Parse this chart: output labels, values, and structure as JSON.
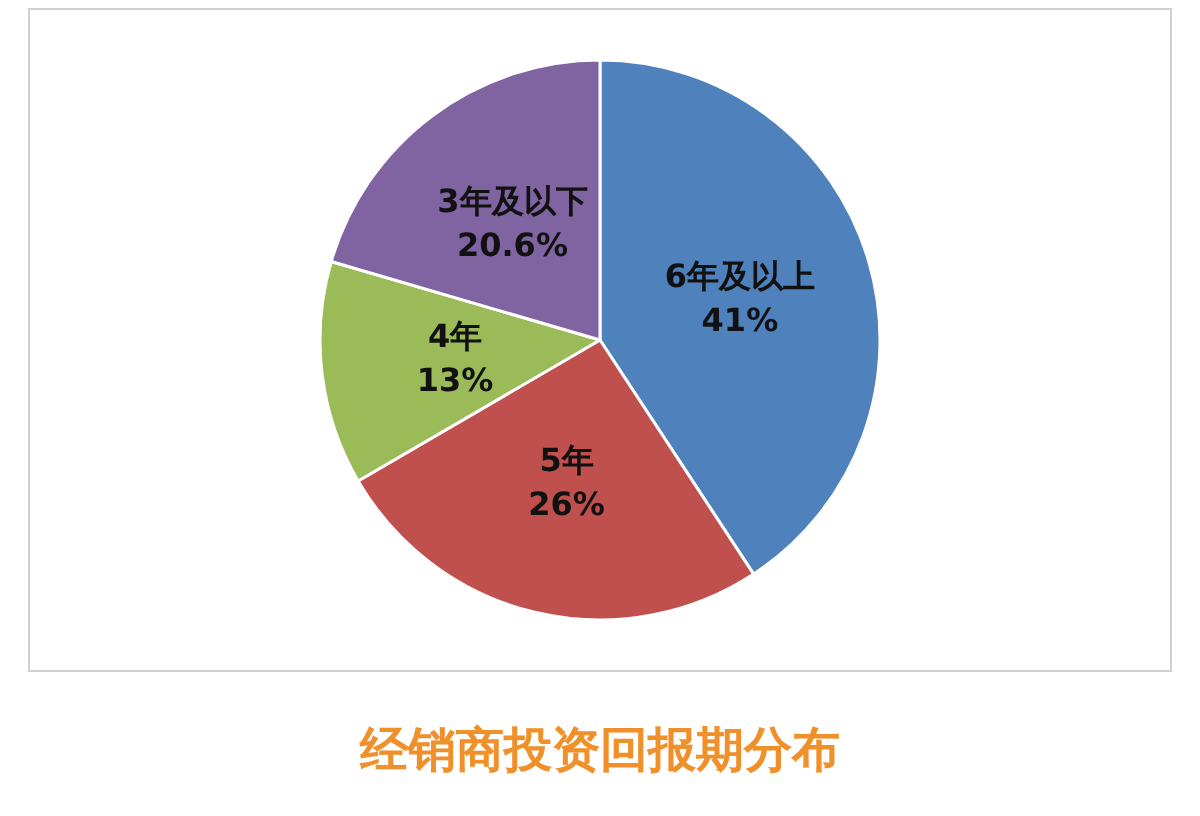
{
  "chart_data": {
    "type": "pie",
    "title": "经销商投资回报期分布",
    "categories": [
      "6年及以上",
      "5年",
      "4年",
      "3年及以下"
    ],
    "values": [
      41,
      26,
      13,
      20.6
    ],
    "value_labels": [
      "41%",
      "26%",
      "13%",
      "20.6%"
    ],
    "colors": [
      "#4f81bd",
      "#c0504d",
      "#9bbb59",
      "#8064a2"
    ],
    "legend": false
  }
}
